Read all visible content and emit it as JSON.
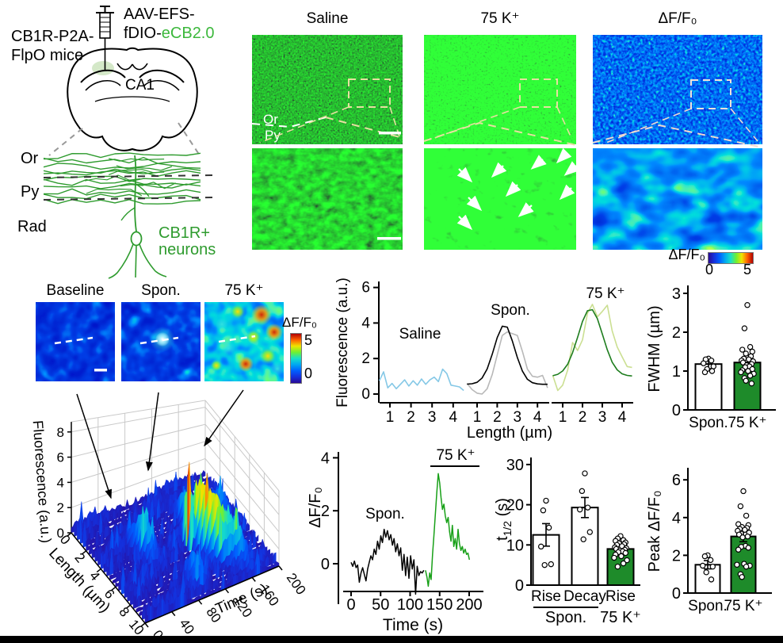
{
  "figure": {
    "bg": "#ffffff",
    "bottom_bar": "#000000",
    "jet": [
      "#2a0a96",
      "#1530dc",
      "#0060ff",
      "#00a8f0",
      "#18e0c8",
      "#70f030",
      "#efe400",
      "#ff6000",
      "#b00000"
    ]
  },
  "schematic": {
    "mouse_line1": "CB1R-P2A-",
    "mouse_line2": "FlpO mice",
    "virus_line1": "AAV-EFS-",
    "virus_line2_black": "fDIO-",
    "virus_line2_green": "eCB2.0",
    "region_label": "CA1",
    "layers": [
      "Or",
      "Py",
      "Rad"
    ],
    "neuron_line1": "CB1R+",
    "neuron_line2": "neurons",
    "green": "#2e9b2e",
    "bright_green": "#3cb83c"
  },
  "micrographs": {
    "col_titles": [
      "Saline",
      "75 K⁺",
      "ΔF/F₀"
    ],
    "or_label": "Or",
    "py_label": "Py",
    "colorbar": {
      "label": "ΔF/F₀",
      "min": "0",
      "max": "5"
    }
  },
  "roi_maps": {
    "titles": [
      "Baseline",
      "Spon.",
      "75 K⁺"
    ],
    "colorbar": {
      "label": "ΔF/F₀",
      "max": "5",
      "min": "0"
    }
  },
  "chart_data": [
    {
      "id": "length_profiles",
      "type": "line",
      "ylabel": "Fluorescence (a.u.)",
      "xlabel": "Length (µm)",
      "ylim": [
        0,
        6
      ],
      "yticks": [
        0,
        2,
        4,
        6
      ],
      "xticks": [
        1,
        2,
        3,
        4
      ],
      "panels": [
        {
          "label": "Saline",
          "series": [
            {
              "name": "raw",
              "color": "#85c8e6",
              "x": [
                0.5,
                0.7,
                0.9,
                1.1,
                1.3,
                1.5,
                1.7,
                1.9,
                2.1,
                2.3,
                2.5,
                2.7,
                2.9,
                3.1,
                3.3,
                3.5,
                3.7,
                3.9,
                4.1,
                4.3,
                4.5
              ],
              "y": [
                0.75,
                1.25,
                0.35,
                0.6,
                0.3,
                0.55,
                0.8,
                0.45,
                0.75,
                0.5,
                0.85,
                0.55,
                0.8,
                0.95,
                0.7,
                1.4,
                1.15,
                0.5,
                0.45,
                0.4,
                0.2
              ]
            }
          ]
        },
        {
          "label": "Spon.",
          "series": [
            {
              "name": "raw",
              "color": "#b8b8b8",
              "x": [
                0.5,
                0.75,
                1.0,
                1.25,
                1.5,
                1.75,
                2.0,
                2.25,
                2.5,
                2.75,
                3.0,
                3.25,
                3.5,
                3.75,
                4.0,
                4.25,
                4.5
              ],
              "y": [
                0.6,
                0.25,
                0.05,
                0.0,
                0.3,
                1.1,
                2.2,
                3.3,
                3.5,
                3.4,
                3.3,
                2.4,
                1.4,
                1.0,
                0.95,
                1.05,
                0.35
              ]
            },
            {
              "name": "fit",
              "color": "#000000",
              "x": [
                0.5,
                0.75,
                1.0,
                1.25,
                1.5,
                1.75,
                2.0,
                2.25,
                2.5,
                2.75,
                3.0,
                3.25,
                3.5,
                3.75,
                4.0,
                4.25,
                4.5
              ],
              "y": [
                0.56,
                0.58,
                0.66,
                0.9,
                1.41,
                2.24,
                3.18,
                3.82,
                3.77,
                3.0,
                2.06,
                1.29,
                0.83,
                0.64,
                0.57,
                0.55,
                0.55
              ]
            }
          ]
        },
        {
          "label": "75 K⁺",
          "series": [
            {
              "name": "raw",
              "color": "#cbdf92",
              "x": [
                0.5,
                0.75,
                1.0,
                1.25,
                1.5,
                1.75,
                2.0,
                2.25,
                2.5,
                2.75,
                3.0,
                3.25,
                3.5,
                3.75,
                4.0,
                4.25,
                4.5
              ],
              "y": [
                1.05,
                0.2,
                0.5,
                1.35,
                2.9,
                2.45,
                3.05,
                4.55,
                5.05,
                4.35,
                4.65,
                5.0,
                3.55,
                2.65,
                2.1,
                1.55,
                1.5
              ]
            },
            {
              "name": "fit",
              "color": "#1e7d1e",
              "x": [
                0.5,
                0.75,
                1.0,
                1.25,
                1.5,
                1.75,
                2.0,
                2.25,
                2.5,
                2.75,
                3.0,
                3.25,
                3.5,
                3.75,
                4.0,
                4.25,
                4.5
              ],
              "y": [
                1.03,
                1.11,
                1.3,
                1.68,
                2.33,
                3.19,
                4.09,
                4.69,
                4.75,
                4.24,
                3.38,
                2.49,
                1.79,
                1.36,
                1.14,
                1.05,
                1.02
              ]
            }
          ]
        }
      ]
    },
    {
      "id": "fwhm",
      "type": "bar",
      "ylabel": "FWHM (µm)",
      "ylim": [
        0,
        3.3
      ],
      "yticks": [
        0,
        1,
        2,
        3
      ],
      "categories": [
        "Spon.",
        "75 K⁺"
      ],
      "values": [
        1.18,
        1.22
      ],
      "errors": [
        0.12,
        0.08
      ],
      "bar_colors": [
        "#ffffff",
        "#1e8b2a"
      ],
      "points": [
        [
          1.32,
          1.3,
          1.27,
          1.2,
          1.12,
          1.05,
          1.0,
          0.97
        ],
        [
          2.7,
          2.1,
          1.62,
          1.55,
          1.5,
          1.45,
          1.38,
          1.32,
          1.3,
          1.27,
          1.25,
          1.22,
          1.18,
          1.15,
          1.12,
          1.1,
          1.05,
          1.02,
          1.0,
          0.97,
          0.93,
          0.88,
          0.82,
          0.75,
          0.68
        ]
      ]
    },
    {
      "id": "dff_trace",
      "type": "line",
      "ylabel": "ΔF/F₀",
      "xlabel": "Time (s)",
      "xlim": [
        0,
        200
      ],
      "xticks": [
        0,
        50,
        100,
        150,
        200
      ],
      "ylim": [
        -1.6,
        4.2
      ],
      "yticks": [
        0,
        2,
        4
      ],
      "annotations": {
        "spon": "Spon.",
        "k": "75 K⁺"
      },
      "series": [
        {
          "name": "Spon.",
          "color": "#000000",
          "x0": 0,
          "dx": 2.8,
          "y": [
            0.05,
            -0.1,
            0.1,
            -0.15,
            -0.05,
            -0.7,
            -0.35,
            -0.15,
            -0.4,
            -0.65,
            -0.2,
            0.05,
            0.3,
            0.15,
            0.55,
            0.35,
            0.85,
            0.55,
            1.05,
            0.8,
            1.3,
            1.0,
            1.25,
            0.9,
            1.1,
            0.7,
            0.95,
            0.45,
            0.75,
            0.3,
            0.6,
            -0.25,
            0.35,
            -0.45,
            0.25,
            -0.55,
            0.3,
            -0.2,
            0.15,
            -1.15,
            -0.1,
            -0.45,
            -0.3,
            -0.35,
            -0.25
          ]
        },
        {
          "name": "75 K⁺",
          "color": "#18a018",
          "x0": 126,
          "dx": 2.4,
          "y": [
            -0.25,
            -0.5,
            -0.85,
            -0.35,
            -0.6,
            0.35,
            1.1,
            1.9,
            2.7,
            3.4,
            3.05,
            2.5,
            2.05,
            2.25,
            1.8,
            1.55,
            1.75,
            1.2,
            0.85,
            1.45,
            0.65,
            0.95,
            0.55,
            1.3,
            0.75,
            0.5,
            0.65,
            0.4,
            0.55,
            0.35,
            0.4,
            0.15
          ]
        }
      ]
    },
    {
      "id": "t_half",
      "type": "bar",
      "ylabel_parts": [
        "t",
        "1/2",
        " (s)"
      ],
      "ylim": [
        0,
        32
      ],
      "yticks": [
        0,
        10,
        20,
        30
      ],
      "categories": [
        "Rise",
        "Decay",
        "Rise"
      ],
      "values": [
        12.5,
        19.3,
        9.0
      ],
      "errors": [
        2.8,
        2.5,
        0.8
      ],
      "bar_colors": [
        "#ffffff",
        "#ffffff",
        "#1e8b2a"
      ],
      "group_labels": [
        "Spon.",
        "75 K⁺"
      ],
      "points": [
        [
          21.0,
          18.6,
          14.3,
          9.6,
          5.2,
          5.0
        ],
        [
          27.8,
          23.4,
          19.3,
          18.8,
          13.2,
          11.4
        ],
        [
          12.2,
          11.6,
          11.2,
          11.0,
          10.6,
          10.4,
          10.2,
          10.0,
          9.7,
          9.4,
          9.2,
          9.0,
          8.8,
          8.6,
          8.4,
          8.2,
          8.0,
          7.6,
          7.2,
          6.8,
          6.2,
          5.4,
          4.6
        ]
      ]
    },
    {
      "id": "peak_dff",
      "type": "bar",
      "ylabel": "Peak ΔF/F₀",
      "ylim": [
        0,
        6.6
      ],
      "yticks": [
        0,
        2,
        4,
        6
      ],
      "categories": [
        "Spon.",
        "75 K⁺"
      ],
      "values": [
        1.5,
        3.0
      ],
      "errors": [
        0.22,
        0.28
      ],
      "bar_colors": [
        "#ffffff",
        "#1e8b2a"
      ],
      "points": [
        [
          2.0,
          1.95,
          1.75,
          1.45,
          1.4,
          1.1,
          0.72
        ],
        [
          5.4,
          4.6,
          4.1,
          3.65,
          3.6,
          3.5,
          3.45,
          3.4,
          3.35,
          3.3,
          3.2,
          3.1,
          3.0,
          2.95,
          2.5,
          2.45,
          2.4,
          2.3,
          1.55,
          1.5,
          1.45,
          1.4,
          1.0,
          0.85
        ]
      ]
    },
    {
      "id": "surface3d",
      "type": "surface",
      "zlabel": "Fluorescence (a.u.)",
      "xlabel": "Length (µm)",
      "ylabel": "Time (s)",
      "zticks": [
        0,
        2,
        4,
        6,
        8
      ],
      "xticks": [
        0,
        2,
        4,
        6,
        8,
        10
      ],
      "yticks": [
        0,
        40,
        80,
        120,
        160,
        200
      ],
      "xlim": [
        0,
        10
      ],
      "ylim": [
        0,
        200
      ],
      "zlim": [
        0,
        9
      ],
      "peaks": [
        {
          "l": 4.2,
          "t": 62,
          "h": 3.0,
          "sl": 0.8,
          "st": 7
        },
        {
          "l": 5.2,
          "t": 118,
          "h": 7.6,
          "sl": 0.35,
          "st": 2.4
        },
        {
          "l": 5.4,
          "t": 133,
          "h": 5.0,
          "sl": 0.9,
          "st": 7
        },
        {
          "l": 6.8,
          "t": 143,
          "h": 4.4,
          "sl": 0.9,
          "st": 8
        },
        {
          "l": 4.3,
          "t": 152,
          "h": 3.8,
          "sl": 0.8,
          "st": 7
        },
        {
          "l": 7.6,
          "t": 162,
          "h": 3.0,
          "sl": 0.9,
          "st": 8
        },
        {
          "l": 2.9,
          "t": 136,
          "h": 2.2,
          "sl": 0.7,
          "st": 6
        },
        {
          "l": 8.3,
          "t": 95,
          "h": 1.6,
          "sl": 0.8,
          "st": 7
        },
        {
          "l": 3.6,
          "t": 185,
          "h": 2.0,
          "sl": 0.7,
          "st": 6
        }
      ],
      "noise": 0.8
    }
  ]
}
